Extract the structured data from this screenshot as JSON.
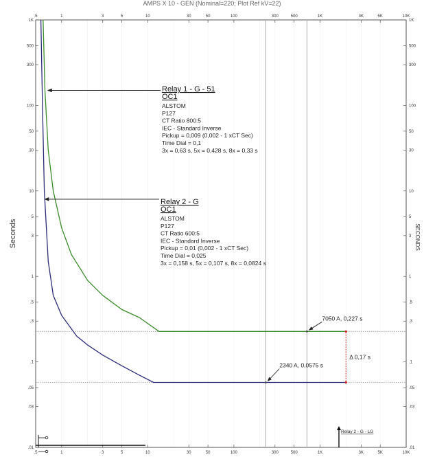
{
  "chart_data": {
    "type": "line",
    "title": "AMPS X 10 - GEN (Nominal=220; Plot Ref kV=22)",
    "ylabel": "Seconds",
    "y2label": "SECONDS",
    "xscale": "log",
    "yscale": "log",
    "xlim": [
      0.5,
      10000
    ],
    "ylim": [
      0.01,
      1000
    ],
    "x_ticks": [
      {
        "v": 0.5,
        "label": ".5"
      },
      {
        "v": 1,
        "label": "1"
      },
      {
        "v": 3,
        "label": "3"
      },
      {
        "v": 5,
        "label": "5"
      },
      {
        "v": 10,
        "label": "10"
      },
      {
        "v": 30,
        "label": "30"
      },
      {
        "v": 50,
        "label": "50"
      },
      {
        "v": 100,
        "label": "100"
      },
      {
        "v": 300,
        "label": "300"
      },
      {
        "v": 500,
        "label": "500"
      },
      {
        "v": 1000,
        "label": "1K"
      },
      {
        "v": 3000,
        "label": "3K"
      },
      {
        "v": 5000,
        "label": "5K"
      },
      {
        "v": 10000,
        "label": "10K"
      }
    ],
    "y_ticks": [
      {
        "v": 1000,
        "label": "1K"
      },
      {
        "v": 500,
        "label": "500"
      },
      {
        "v": 300,
        "label": "300"
      },
      {
        "v": 100,
        "label": "100"
      },
      {
        "v": 50,
        "label": "50"
      },
      {
        "v": 30,
        "label": "30"
      },
      {
        "v": 10,
        "label": "10"
      },
      {
        "v": 5,
        "label": "5"
      },
      {
        "v": 3,
        "label": "3"
      },
      {
        "v": 1,
        "label": "1"
      },
      {
        "v": 0.5,
        "label": ".5"
      },
      {
        "v": 0.3,
        "label": ".3"
      },
      {
        "v": 0.1,
        "label": ".1"
      },
      {
        "v": 0.05,
        "label": ".05"
      },
      {
        "v": 0.03,
        "label": ".03"
      },
      {
        "v": 0.01,
        "label": ".01"
      }
    ],
    "series": [
      {
        "name": "Relay 1 - G - 51",
        "color": "#3a8a2a",
        "points": [
          [
            0.61,
            1000
          ],
          [
            0.64,
            150
          ],
          [
            0.7,
            30
          ],
          [
            0.8,
            10
          ],
          [
            1,
            3.7
          ],
          [
            1.3,
            1.8
          ],
          [
            2,
            0.9
          ],
          [
            3,
            0.6
          ],
          [
            5,
            0.41
          ],
          [
            8,
            0.33
          ],
          [
            13.5,
            0.227
          ],
          [
            705,
            0.227
          ],
          [
            2000,
            0.227
          ]
        ]
      },
      {
        "name": "Relay 2 - G",
        "color": "#2b2b7a",
        "points": [
          [
            0.575,
            1000
          ],
          [
            0.6,
            100
          ],
          [
            0.63,
            10
          ],
          [
            0.7,
            1.5
          ],
          [
            0.8,
            0.6
          ],
          [
            1,
            0.35
          ],
          [
            1.5,
            0.2
          ],
          [
            2,
            0.158
          ],
          [
            3,
            0.12
          ],
          [
            5,
            0.09
          ],
          [
            8,
            0.07
          ],
          [
            11.7,
            0.0575
          ],
          [
            234,
            0.0575
          ],
          [
            2000,
            0.0575
          ]
        ]
      }
    ],
    "vlines": [
      {
        "x": 234,
        "color": "#aaaaaa"
      },
      {
        "x": 705,
        "color": "#aaaaaa"
      }
    ],
    "hlines": [
      {
        "y": 0.227,
        "color": "#999999",
        "style": "dotted"
      },
      {
        "y": 0.0575,
        "color": "#999999",
        "style": "dotted"
      }
    ],
    "annotations": [
      {
        "arrow_to": [
          0.64,
          150
        ],
        "title_lines": [
          "Relay 1 - G - 51",
          "OC1"
        ],
        "lines": [
          "ALSTOM",
          "P127",
          "CT Ratio 800:5",
          "IEC - Standard Inverse",
          "Pickup = 0,009 (0,002 - 1  xCT Sec)",
          "Time Dial = 0,1",
          "3x = 0,63 s, 5x = 0,428 s, 8x = 0,33 s"
        ]
      },
      {
        "arrow_to": [
          0.59,
          8
        ],
        "title_lines": [
          "Relay 2 - G",
          "OC1"
        ],
        "lines": [
          "ALSTOM",
          "P127",
          "CT Ratio 600:5",
          "IEC - Standard Inverse",
          "Pickup = 0,01 (0,002 - 1  xCT Sec)",
          "Time Dial = 0,025",
          "3x = 0,158 s, 5x = 0,107 s, 8x = 0,0824 s"
        ]
      }
    ],
    "point_labels": [
      {
        "text": "7050 A, 0,227 s",
        "x": 705,
        "y": 0.227
      },
      {
        "text": "2340 A, 0,0575 s",
        "x": 234,
        "y": 0.0575
      }
    ],
    "margin_label": {
      "text": "Δ 0,17 s",
      "x": 2000,
      "y_top": 0.227,
      "y_bottom": 0.0575,
      "color": "#cc2222"
    },
    "corner_label": "Relay 2 - G - LG"
  }
}
